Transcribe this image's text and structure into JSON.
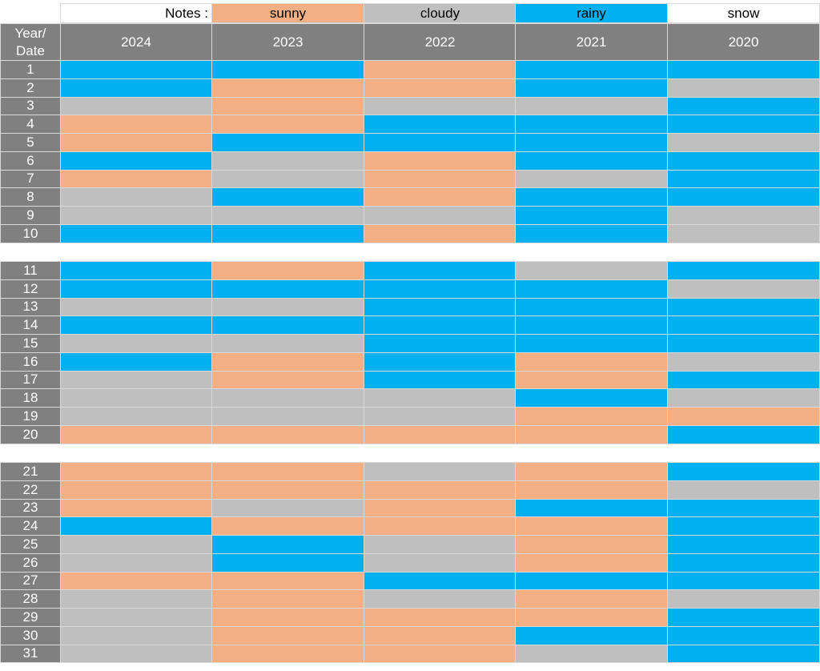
{
  "notes": {
    "label": "Notes :",
    "items": [
      {
        "key": "sunny",
        "label": "sunny",
        "color": "#f4b084"
      },
      {
        "key": "cloudy",
        "label": "cloudy",
        "color": "#bfbfbf"
      },
      {
        "key": "rainy",
        "label": "rainy",
        "color": "#00b0f0"
      },
      {
        "key": "snow",
        "label": "snow",
        "color": "#ffffff"
      }
    ]
  },
  "header": {
    "corner_line1": "Year/",
    "corner_line2": "Date",
    "years": [
      "2024",
      "2023",
      "2022",
      "2021",
      "2020"
    ]
  },
  "chart_data": {
    "type": "heatmap",
    "x": [
      "2024",
      "2023",
      "2022",
      "2021",
      "2020"
    ],
    "y": [
      "1",
      "2",
      "3",
      "4",
      "5",
      "6",
      "7",
      "8",
      "9",
      "10",
      "11",
      "12",
      "13",
      "14",
      "15",
      "16",
      "17",
      "18",
      "19",
      "20",
      "21",
      "22",
      "23",
      "24",
      "25",
      "26",
      "27",
      "28",
      "29",
      "30",
      "31"
    ],
    "row_groups": [
      [
        1,
        10
      ],
      [
        11,
        20
      ],
      [
        21,
        31
      ]
    ],
    "legend": [
      "sunny",
      "cloudy",
      "rainy",
      "snow"
    ],
    "rows": [
      [
        "rainy",
        "rainy",
        "sunny",
        "rainy",
        "rainy"
      ],
      [
        "rainy",
        "sunny",
        "sunny",
        "rainy",
        "cloudy"
      ],
      [
        "cloudy",
        "sunny",
        "cloudy",
        "cloudy",
        "rainy"
      ],
      [
        "sunny",
        "sunny",
        "rainy",
        "rainy",
        "rainy"
      ],
      [
        "sunny",
        "rainy",
        "rainy",
        "rainy",
        "cloudy"
      ],
      [
        "rainy",
        "cloudy",
        "sunny",
        "rainy",
        "rainy"
      ],
      [
        "sunny",
        "cloudy",
        "sunny",
        "cloudy",
        "rainy"
      ],
      [
        "cloudy",
        "rainy",
        "sunny",
        "rainy",
        "rainy"
      ],
      [
        "cloudy",
        "cloudy",
        "cloudy",
        "rainy",
        "cloudy"
      ],
      [
        "rainy",
        "rainy",
        "sunny",
        "rainy",
        "cloudy"
      ],
      [
        "rainy",
        "sunny",
        "rainy",
        "cloudy",
        "rainy"
      ],
      [
        "rainy",
        "rainy",
        "rainy",
        "rainy",
        "cloudy"
      ],
      [
        "cloudy",
        "cloudy",
        "rainy",
        "rainy",
        "rainy"
      ],
      [
        "rainy",
        "rainy",
        "rainy",
        "rainy",
        "rainy"
      ],
      [
        "cloudy",
        "cloudy",
        "rainy",
        "rainy",
        "rainy"
      ],
      [
        "rainy",
        "sunny",
        "rainy",
        "sunny",
        "cloudy"
      ],
      [
        "cloudy",
        "sunny",
        "rainy",
        "sunny",
        "rainy"
      ],
      [
        "cloudy",
        "cloudy",
        "cloudy",
        "rainy",
        "cloudy"
      ],
      [
        "cloudy",
        "cloudy",
        "cloudy",
        "sunny",
        "sunny"
      ],
      [
        "sunny",
        "sunny",
        "sunny",
        "sunny",
        "rainy"
      ],
      [
        "sunny",
        "sunny",
        "cloudy",
        "sunny",
        "rainy"
      ],
      [
        "sunny",
        "sunny",
        "sunny",
        "sunny",
        "cloudy"
      ],
      [
        "sunny",
        "cloudy",
        "sunny",
        "rainy",
        "rainy"
      ],
      [
        "rainy",
        "sunny",
        "sunny",
        "sunny",
        "rainy"
      ],
      [
        "cloudy",
        "rainy",
        "cloudy",
        "sunny",
        "rainy"
      ],
      [
        "cloudy",
        "rainy",
        "cloudy",
        "sunny",
        "rainy"
      ],
      [
        "sunny",
        "sunny",
        "rainy",
        "rainy",
        "rainy"
      ],
      [
        "cloudy",
        "sunny",
        "cloudy",
        "sunny",
        "cloudy"
      ],
      [
        "cloudy",
        "sunny",
        "sunny",
        "sunny",
        "rainy"
      ],
      [
        "cloudy",
        "sunny",
        "sunny",
        "rainy",
        "rainy"
      ],
      [
        "cloudy",
        "sunny",
        "sunny",
        "cloudy",
        "rainy"
      ]
    ]
  }
}
